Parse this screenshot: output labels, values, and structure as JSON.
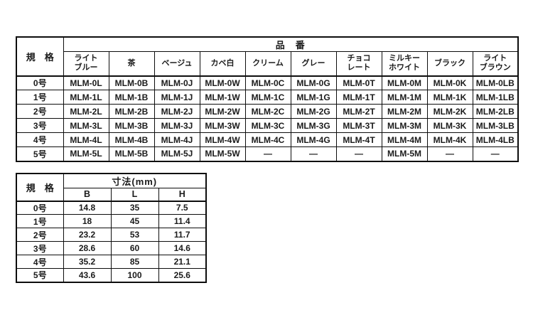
{
  "page": {
    "background": "#ffffff",
    "text_color": "#1a1a1a",
    "border_color": "#0d0d0d"
  },
  "product_table": {
    "spec_header": "規　格",
    "group_header": "品　番",
    "columns": [
      "ライト\nブルー",
      "茶",
      "ベージュ",
      "カベ白",
      "クリーム",
      "グレー",
      "チョコ\nレート",
      "ミルキー\nホワイト",
      "ブラック",
      "ライト\nブラウン"
    ],
    "rows": [
      {
        "spec": "0号",
        "cells": [
          "MLM-0L",
          "MLM-0B",
          "MLM-0J",
          "MLM-0W",
          "MLM-0C",
          "MLM-0G",
          "MLM-0T",
          "MLM-0M",
          "MLM-0K",
          "MLM-0LB"
        ]
      },
      {
        "spec": "1号",
        "cells": [
          "MLM-1L",
          "MLM-1B",
          "MLM-1J",
          "MLM-1W",
          "MLM-1C",
          "MLM-1G",
          "MLM-1T",
          "MLM-1M",
          "MLM-1K",
          "MLM-1LB"
        ]
      },
      {
        "spec": "2号",
        "cells": [
          "MLM-2L",
          "MLM-2B",
          "MLM-2J",
          "MLM-2W",
          "MLM-2C",
          "MLM-2G",
          "MLM-2T",
          "MLM-2M",
          "MLM-2K",
          "MLM-2LB"
        ]
      },
      {
        "spec": "3号",
        "cells": [
          "MLM-3L",
          "MLM-3B",
          "MLM-3J",
          "MLM-3W",
          "MLM-3C",
          "MLM-3G",
          "MLM-3T",
          "MLM-3M",
          "MLM-3K",
          "MLM-3LB"
        ]
      },
      {
        "spec": "4号",
        "cells": [
          "MLM-4L",
          "MLM-4B",
          "MLM-4J",
          "MLM-4W",
          "MLM-4C",
          "MLM-4G",
          "MLM-4T",
          "MLM-4M",
          "MLM-4K",
          "MLM-4LB"
        ]
      },
      {
        "spec": "5号",
        "cells": [
          "MLM-5L",
          "MLM-5B",
          "MLM-5J",
          "MLM-5W",
          "—",
          "—",
          "—",
          "MLM-5M",
          "—",
          "—"
        ]
      }
    ]
  },
  "dimension_table": {
    "spec_header": "規　格",
    "group_header": "寸法(mm)",
    "columns": [
      "B",
      "L",
      "H"
    ],
    "rows": [
      {
        "spec": "0号",
        "cells": [
          "14.8",
          "35",
          "7.5"
        ]
      },
      {
        "spec": "1号",
        "cells": [
          "18",
          "45",
          "11.4"
        ]
      },
      {
        "spec": "2号",
        "cells": [
          "23.2",
          "53",
          "11.7"
        ]
      },
      {
        "spec": "3号",
        "cells": [
          "28.6",
          "60",
          "14.6"
        ]
      },
      {
        "spec": "4号",
        "cells": [
          "35.2",
          "85",
          "21.1"
        ]
      },
      {
        "spec": "5号",
        "cells": [
          "43.6",
          "100",
          "25.6"
        ]
      }
    ]
  }
}
